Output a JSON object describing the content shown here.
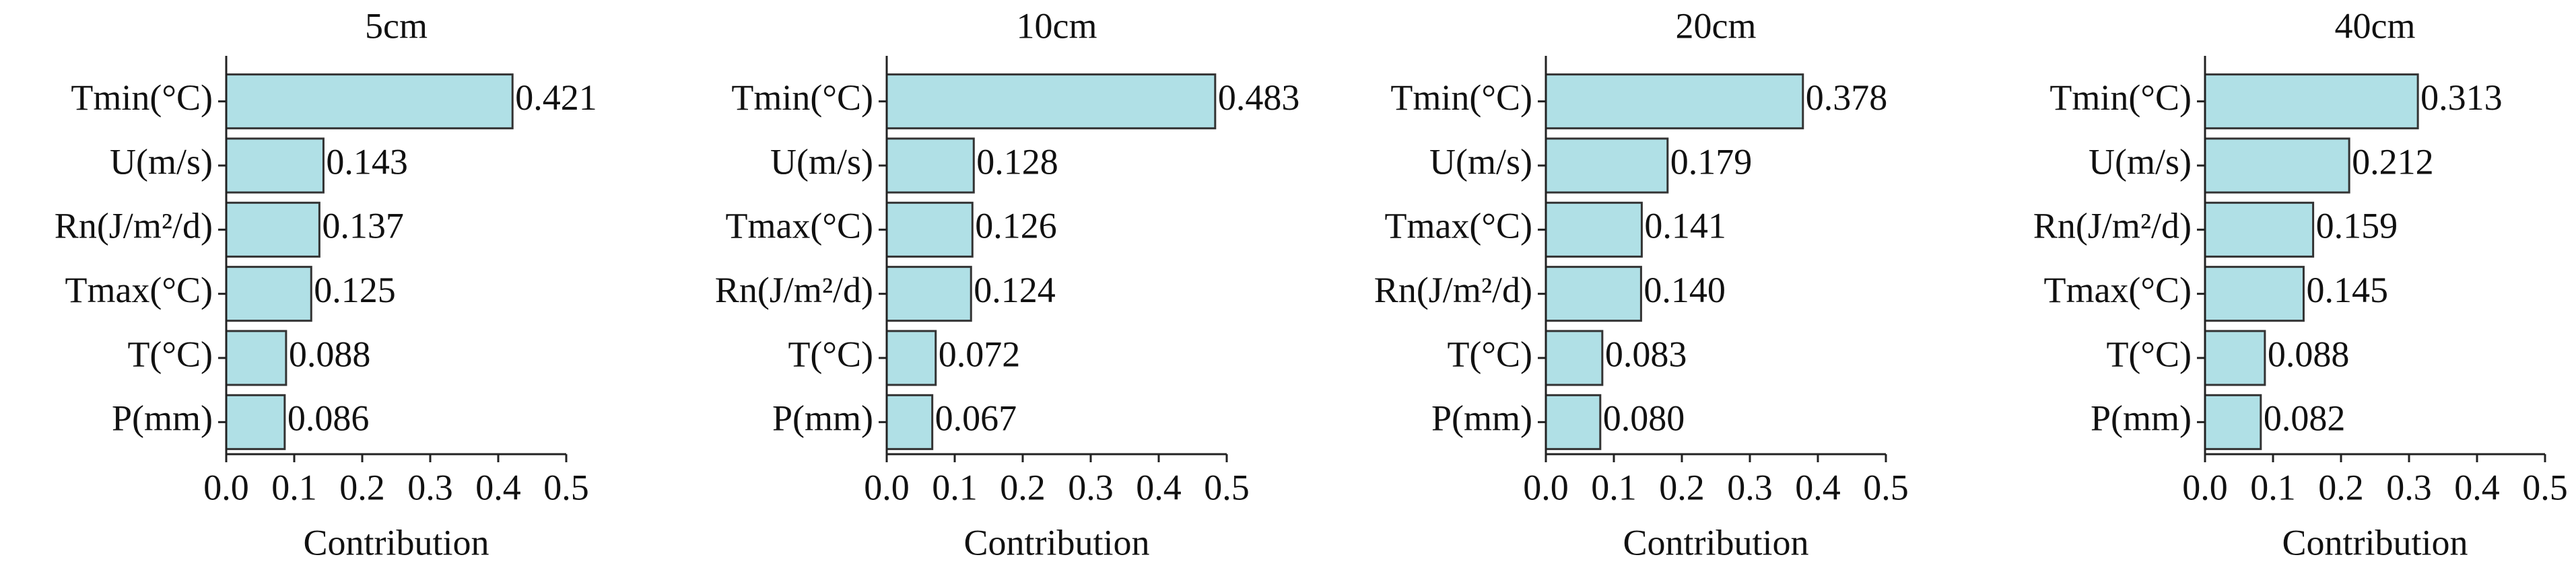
{
  "chart_data": [
    {
      "type": "bar",
      "orientation": "horizontal",
      "title": "5cm",
      "categories": [
        "Tmin(°C)",
        "U(m/s)",
        "Rn(J/m²/d)",
        "Tmax(°C)",
        "T(°C)",
        "P(mm)"
      ],
      "values": [
        0.421,
        0.143,
        0.137,
        0.125,
        0.088,
        0.086
      ],
      "value_labels": [
        "0.421",
        "0.143",
        "0.137",
        "0.125",
        "0.088",
        "0.086"
      ],
      "xlim": [
        0,
        0.5
      ],
      "xticks": [
        {
          "value": 0,
          "label": "0.0"
        },
        0.1,
        0.2,
        0.3,
        0.4,
        {
          "value": 0.5,
          "label": "0.5"
        }
      ],
      "xlabel": "Contribution",
      "color": "#b0e0e6"
    },
    {
      "type": "bar",
      "orientation": "horizontal",
      "title": "10cm",
      "categories": [
        "Tmin(°C)",
        "U(m/s)",
        "Tmax(°C)",
        "Rn(J/m²/d)",
        "T(°C)",
        "P(mm)"
      ],
      "values": [
        0.483,
        0.128,
        0.126,
        0.124,
        0.072,
        0.067
      ],
      "value_labels": [
        "0.483",
        "0.128",
        "0.126",
        "0.124",
        "0.072",
        "0.067"
      ],
      "xlim": [
        0,
        0.5
      ],
      "xticks": [
        {
          "value": 0,
          "label": "0.0"
        },
        0.1,
        0.2,
        0.3,
        0.4,
        {
          "value": 0.5,
          "label": "0.5"
        }
      ],
      "xlabel": "Contribution",
      "color": "#b0e0e6"
    },
    {
      "type": "bar",
      "orientation": "horizontal",
      "title": "20cm",
      "categories": [
        "Tmin(°C)",
        "U(m/s)",
        "Tmax(°C)",
        "Rn(J/m²/d)",
        "T(°C)",
        "P(mm)"
      ],
      "values": [
        0.378,
        0.179,
        0.141,
        0.14,
        0.083,
        0.08
      ],
      "value_labels": [
        "0.378",
        "0.179",
        "0.141",
        "0.140",
        "0.083",
        "0.080"
      ],
      "xlim": [
        0,
        0.5
      ],
      "xticks": [
        {
          "value": 0,
          "label": "0.0"
        },
        0.1,
        0.2,
        0.3,
        0.4,
        {
          "value": 0.5,
          "label": "0.5"
        }
      ],
      "xlabel": "Contribution",
      "color": "#b0e0e6"
    },
    {
      "type": "bar",
      "orientation": "horizontal",
      "title": "40cm",
      "categories": [
        "Tmin(°C)",
        "U(m/s)",
        "Rn(J/m²/d)",
        "Tmax(°C)",
        "T(°C)",
        "P(mm)"
      ],
      "values": [
        0.313,
        0.212,
        0.159,
        0.145,
        0.088,
        0.082
      ],
      "value_labels": [
        "0.313",
        "0.212",
        "0.159",
        "0.145",
        "0.088",
        "0.082"
      ],
      "xlim": [
        0,
        0.5
      ],
      "xticks": [
        {
          "value": 0,
          "label": "0.0"
        },
        0.1,
        0.2,
        0.3,
        0.4,
        {
          "value": 0.5,
          "label": "0.5"
        }
      ],
      "xlabel": "Contribution",
      "color": "#b0e0e6"
    }
  ]
}
